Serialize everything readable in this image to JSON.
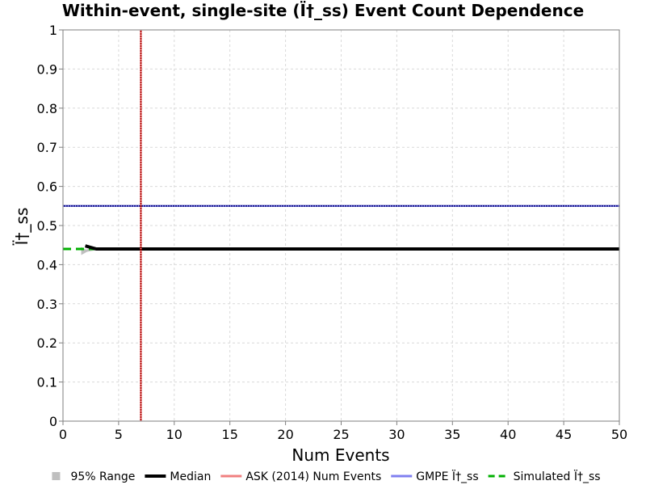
{
  "chart_data": {
    "type": "line",
    "title": "Within-event, single-site (Ï†_ss) Event Count Dependence",
    "xlabel": "Num Events",
    "ylabel": "Ï†_ss",
    "xlim": [
      0,
      50
    ],
    "ylim": [
      0,
      1
    ],
    "x_ticks": [
      "0",
      "5",
      "10",
      "15",
      "20",
      "25",
      "30",
      "35",
      "40",
      "45",
      "50"
    ],
    "y_ticks": [
      "0",
      "0.1",
      "0.2",
      "0.3",
      "0.4",
      "0.5",
      "0.6",
      "0.7",
      "0.8",
      "0.9",
      "1"
    ],
    "grid": true,
    "legend_position": "bottom",
    "legend": [
      {
        "label": "95% Range",
        "color": "#bfbfbf",
        "style": "square"
      },
      {
        "label": "Median",
        "color": "#000000",
        "style": "solid-thick"
      },
      {
        "label": "ASK (2014) Num Events",
        "color": "#f08080",
        "style": "solid"
      },
      {
        "label": "GMPE Ï†_ss",
        "color": "#8080f0",
        "style": "solid"
      },
      {
        "label": "Simulated Ï†_ss",
        "color": "#00b000",
        "style": "dashed"
      }
    ],
    "series": [
      {
        "name": "95% Range",
        "x": [
          2,
          2.5,
          3,
          50
        ],
        "y": [
          0.435,
          0.438,
          0.44,
          0.44
        ]
      },
      {
        "name": "Median",
        "x": [
          2,
          3,
          50
        ],
        "y": [
          0.448,
          0.44,
          0.44
        ]
      },
      {
        "name": "ASK (2014) Num Events",
        "x": [
          7,
          7
        ],
        "y": [
          0,
          1
        ]
      },
      {
        "name": "GMPE Ï†_ss",
        "x": [
          0,
          50
        ],
        "y": [
          0.55,
          0.55
        ]
      },
      {
        "name": "Simulated Ï†_ss",
        "x": [
          0,
          50
        ],
        "y": [
          0.44,
          0.44
        ]
      }
    ],
    "colors": {
      "range": "#bfbfbf",
      "median": "#000000",
      "ask_line": "#b00000",
      "ask_dots": "#f08080",
      "gmpe_line": "#000080",
      "gmpe_dots": "#8080f0",
      "simulated": "#00b000",
      "grid": "#d9d9d9"
    }
  }
}
